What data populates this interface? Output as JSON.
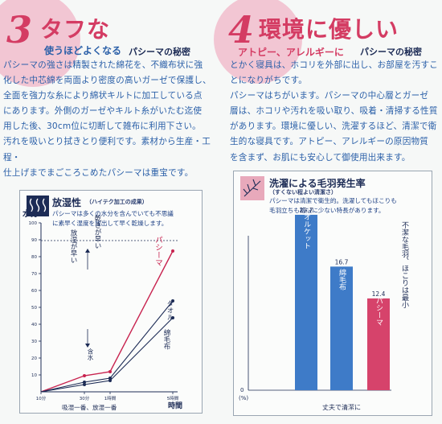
{
  "left": {
    "number": "3",
    "heading": "タフな",
    "subheading": "使うほどよくなる",
    "secret": "パシーマの秘密",
    "paragraph": [
      "パシーマの強さは精製された綿花を、不織布状に強",
      "化した中芯綿を両面より密度の高いガーゼで保護し、",
      "全面を強力な糸により綿状キルトに加工している点",
      "にあります。外側のガーゼやキルト糸がいたむ迄使",
      "用した後、30cm位に切断して雑布に利用下さい。",
      "汚れを吸いとり拭きとり便利です。素材から生産・工程・",
      "仕上げまでまごころこめたパシーマは重宝です。"
    ],
    "panel": {
      "title": "放湿性",
      "title_note": "（ハイテク加工の成果）",
      "desc": [
        "パシーマは多くの水分を含んでいても不思議",
        "に素早く湿度を放出して早く乾燥します。"
      ],
      "ylabel": "水分",
      "xlabel": "時間",
      "x_ticks": [
        "10分",
        "30分",
        "1時間",
        "5時間"
      ],
      "x_caption": "吸湿一番、放湿一番",
      "y_ticks": [
        "10",
        "20",
        "30",
        "40",
        "50",
        "60",
        "70",
        "80",
        "90",
        "100"
      ],
      "ann_fast": "放湿が早い",
      "ann_dry": "乾きが早い",
      "ann_absorb": "含水",
      "series": [
        {
          "name": "パシーマ",
          "color": "#c8234f"
        },
        {
          "name": "タオル",
          "color": "#1c2b55"
        },
        {
          "name": "綿毛布",
          "color": "#1c2b55"
        }
      ]
    }
  },
  "right": {
    "number": "4",
    "heading": "環境に優しい",
    "subheading": "アトピー、アレルギーに",
    "secret": "パシーマの秘密",
    "paragraph": [
      "とかく寝具は、ホコリを外部に出し、お部屋を汚すこ",
      "とになりがちです。",
      "パシーマはちがいます。パシーマの中心層とガーゼ",
      "層は、ホコリや汚れを吸い取り、吸着・清掃する性質",
      "があります。環境に優しい、洗濯するほど、清潔で衛",
      "生的な寝具です。アトピー、アレルギーの原因物質",
      "を含まず、お肌にも安心して御使用出来ます。"
    ],
    "panel": {
      "title": "洗濯による毛羽発生率",
      "title_note": "（すくない程よい清潔さ）",
      "desc": [
        "パシーマは清潔で衛生的。洗濯してもほこりも",
        "毛羽立ちも格段に少ない特長があります。"
      ],
      "side_note": [
        "不潔な毛羽、",
        "ほこりは最小"
      ],
      "unit": "(%)",
      "y_zero": "0",
      "xlabel": "丈夫で清潔に",
      "chart_data": {
        "type": "bar",
        "categories": [
          "タオルケット",
          "綿毛布",
          "パシーマ"
        ],
        "values": [
          23.7,
          16.7,
          12.4
        ],
        "colors": [
          "#3e7bc8",
          "#3e7bc8",
          "#d6436b"
        ],
        "ylabel": "(%)"
      }
    }
  }
}
